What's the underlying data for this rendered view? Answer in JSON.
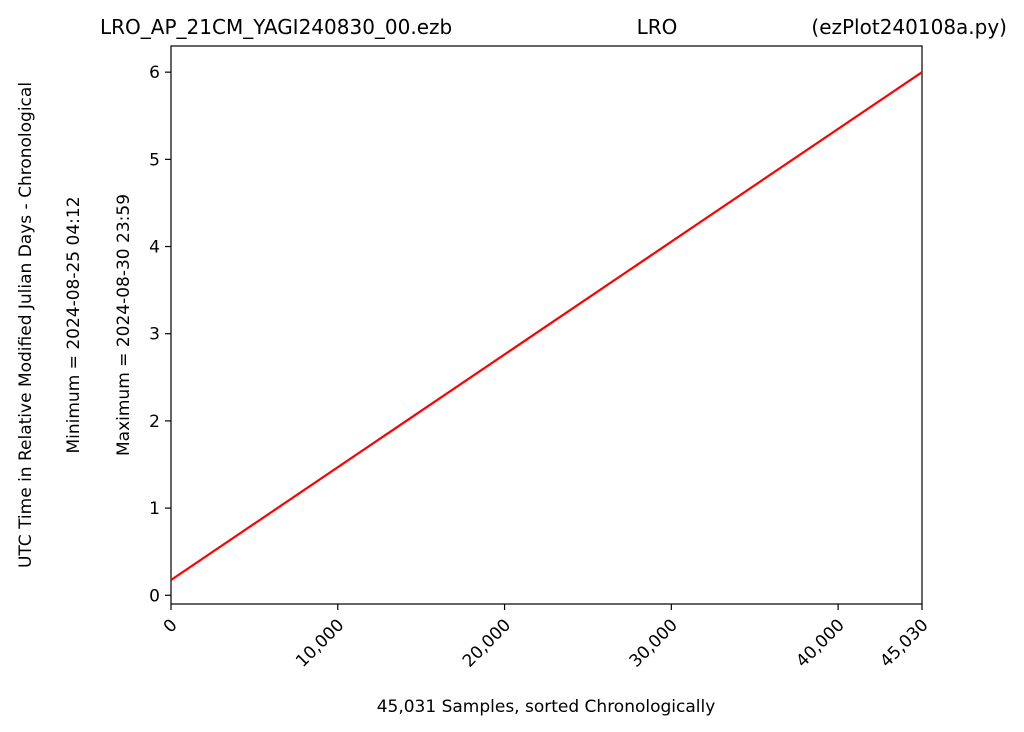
{
  "header": {
    "filename": "LRO_AP_21CM_YAGI240830_00.ezb",
    "site": "LRO",
    "program": "(ezPlot240108a.py)"
  },
  "chart_data": {
    "type": "line",
    "xlabel": "45,031 Samples, sorted Chronologically",
    "ylabel": "UTC Time in Relative Modified Julian Days - Chronological",
    "ylabel_min": "Minimum = 2024-08-25   04:12",
    "ylabel_max": "Maximum = 2024-08-30   23:59",
    "xlim": [
      0,
      45030
    ],
    "ylim": [
      -0.1,
      6.3
    ],
    "x_ticks": [
      0,
      10000,
      20000,
      30000,
      40000,
      45030
    ],
    "x_tick_labels": [
      "0",
      "10,000",
      "20,000",
      "30,000",
      "40,000",
      "45,030"
    ],
    "y_ticks": [
      0,
      1,
      2,
      3,
      4,
      5,
      6
    ],
    "y_tick_labels": [
      "0",
      "1",
      "2",
      "3",
      "4",
      "5",
      "6"
    ],
    "grid": false,
    "series": [
      {
        "x": [
          0,
          45030
        ],
        "y": [
          0.175,
          6.0
        ],
        "color": "#ff0000"
      }
    ]
  }
}
